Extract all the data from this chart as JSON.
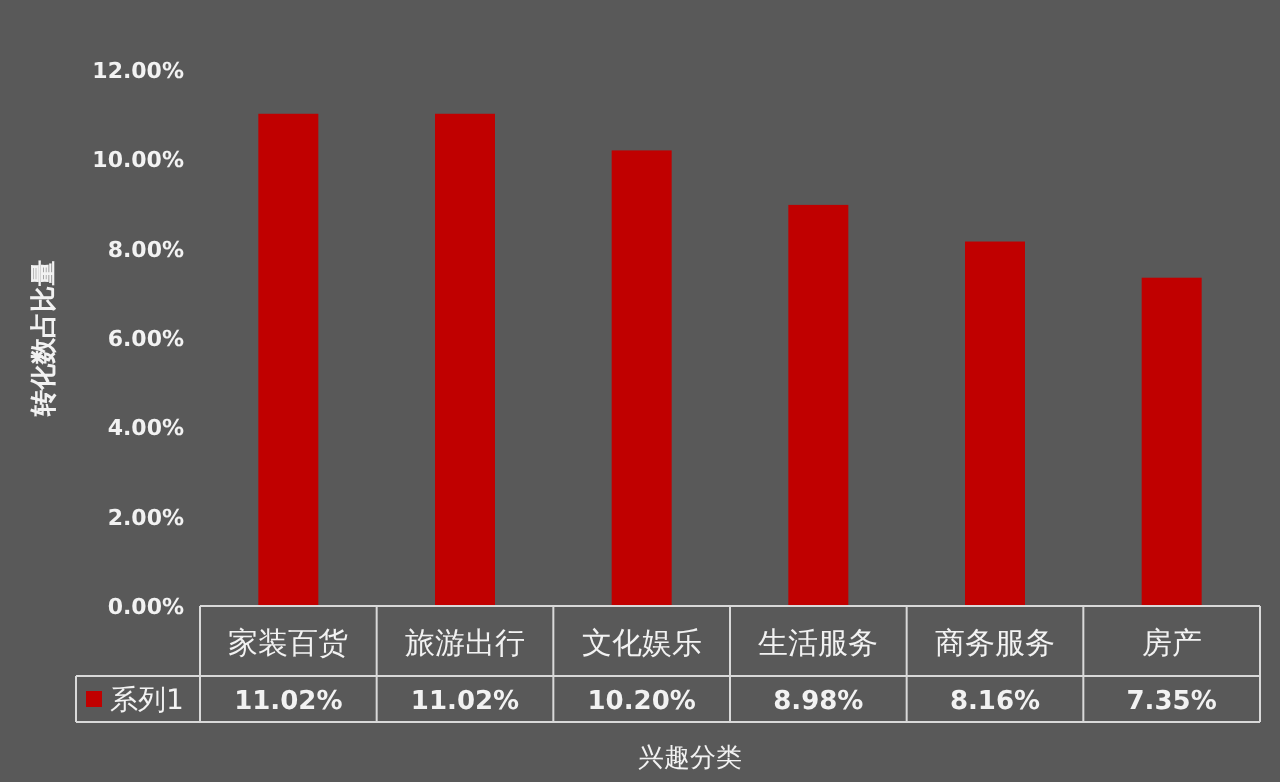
{
  "chart_data": {
    "type": "bar",
    "xlabel": "兴趣分类",
    "ylabel": "转化数占比量",
    "categories": [
      "家装百货",
      "旅游出行",
      "文化娱乐",
      "生活服务",
      "商务服务",
      "房产"
    ],
    "series": [
      {
        "name": "系列1",
        "color": "#c00000",
        "values": [
          11.02,
          11.02,
          10.2,
          8.98,
          8.16,
          7.35
        ],
        "value_labels": [
          "11.02%",
          "11.02%",
          "10.20%",
          "8.98%",
          "8.16%",
          "7.35%"
        ]
      }
    ],
    "ylim": [
      0,
      12
    ],
    "yticks": [
      {
        "value": 0,
        "label": "0.00%"
      },
      {
        "value": 2,
        "label": "2.00%"
      },
      {
        "value": 4,
        "label": "4.00%"
      },
      {
        "value": 6,
        "label": "6.00%"
      },
      {
        "value": 8,
        "label": "8.00%"
      },
      {
        "value": 10,
        "label": "10.00%"
      },
      {
        "value": 12,
        "label": "12.00%"
      }
    ],
    "legend": "bottom",
    "grid": false
  }
}
